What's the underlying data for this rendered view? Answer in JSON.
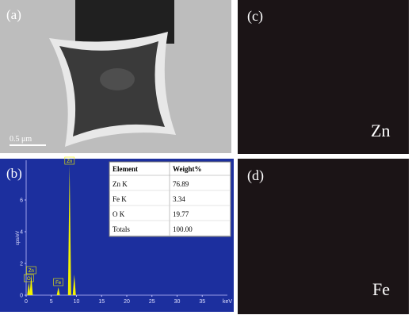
{
  "panels": [
    {
      "label": "(a)",
      "scale_bar": "0.5 μm"
    },
    {
      "label": "(b)"
    },
    {
      "label": "(c)",
      "element": "Zn"
    },
    {
      "label": "(d)",
      "element": "Fe"
    }
  ],
  "spectrum": {
    "y_label": "cps/eV",
    "x_label": "keV",
    "xlim": [
      0,
      40
    ],
    "xticks": [
      0,
      5,
      10,
      15,
      20,
      25,
      30,
      35
    ],
    "ylim": [
      0,
      8.5
    ],
    "yticks": [
      0,
      2,
      4,
      6
    ],
    "peaks": [
      {
        "label": "O",
        "x": 0.52,
        "y": 0.8
      },
      {
        "label": "Zn",
        "x": 1.01,
        "y": 1.3
      },
      {
        "label": "Fe",
        "x": 6.4,
        "y": 0.5
      },
      {
        "label": "Zn",
        "x": 8.63,
        "y": 8.2
      },
      {
        "label": null,
        "x": 9.57,
        "y": 1.3
      }
    ]
  },
  "table": {
    "header": [
      "Element",
      "Weight%"
    ],
    "rows": [
      [
        "Zn K",
        "76.89"
      ],
      [
        "Fe K",
        "3.34"
      ],
      [
        "O  K",
        "19.77"
      ],
      [
        "Totals",
        "100.00"
      ]
    ]
  }
}
